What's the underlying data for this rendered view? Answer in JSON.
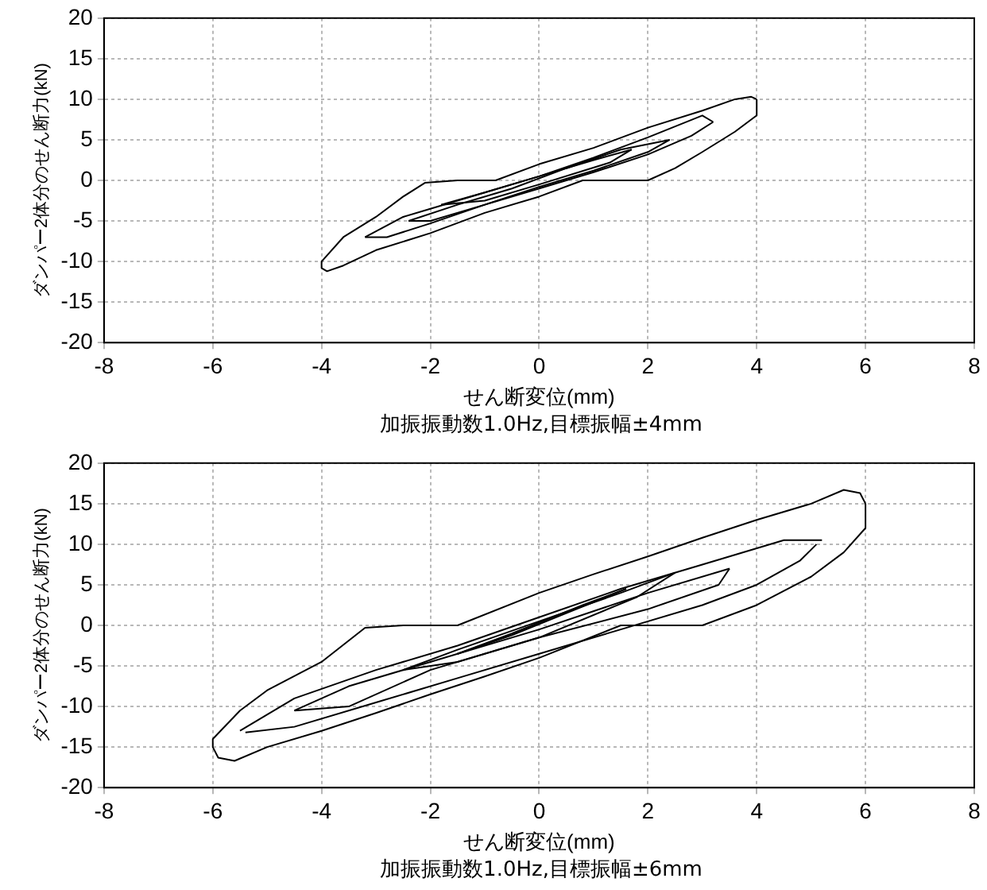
{
  "chart_data": [
    {
      "type": "line",
      "xlabel": "せん断変位(mm)",
      "ylabel": "ダンパー2体分のせん断力(kN)",
      "annotations": [
        "加振振動数1.0Hz,目標振幅±4mm"
      ],
      "xlim": [
        -8,
        8
      ],
      "xticks": [
        -8,
        -6,
        -4,
        -2,
        0,
        2,
        4,
        6,
        8
      ],
      "ylim": [
        -20,
        20
      ],
      "yticks": [
        -20,
        -15,
        -10,
        -5,
        0,
        5,
        10,
        15,
        20
      ],
      "grid": true,
      "legend": false,
      "marker": "none",
      "line_style": "solid",
      "series": [
        {
          "color": "#000000",
          "x": [
            -4,
            -3.6,
            -3,
            -2.5,
            -2.1,
            -1.5,
            -0.8,
            0,
            1,
            2,
            3,
            3.6,
            3.9,
            4
          ],
          "values": [
            -10,
            -7,
            -4.5,
            -2,
            -0.3,
            0,
            0,
            2,
            4,
            6.5,
            8.6,
            10,
            10.3,
            10
          ]
        },
        {
          "color": "#000000",
          "x": [
            -4,
            -4,
            -3.9,
            -3.6,
            -3,
            -2,
            -1,
            0,
            0.8,
            1.5,
            2,
            2.5,
            3,
            3.6,
            4,
            4
          ],
          "values": [
            -10,
            -10.8,
            -11.2,
            -10.5,
            -8.6,
            -6.5,
            -4,
            -2,
            0,
            0,
            0,
            1.5,
            3.5,
            6,
            8,
            10
          ]
        },
        {
          "color": "#000000",
          "x": [
            -3.2,
            -2.5,
            -2,
            -1,
            0,
            1,
            2,
            3,
            3.2
          ],
          "values": [
            -7,
            -4.5,
            -3.5,
            -1.5,
            0.5,
            2.8,
            5.3,
            8,
            7.2
          ]
        },
        {
          "color": "#000000",
          "x": [
            -3.2,
            -2.8,
            -2,
            -1,
            0,
            1,
            2,
            2.8,
            3.2
          ],
          "values": [
            -7,
            -7,
            -5.3,
            -3,
            -1,
            1,
            3.2,
            5.5,
            7.2
          ]
        },
        {
          "color": "#000000",
          "x": [
            -2.4,
            -1.5,
            -0.5,
            0.5,
            1.5,
            2.4
          ],
          "values": [
            -5,
            -3,
            -1,
            1.5,
            3.8,
            5
          ]
        },
        {
          "color": "#000000",
          "x": [
            -2.4,
            -2,
            -1,
            0,
            1,
            2,
            2.4
          ],
          "values": [
            -5,
            -5,
            -3,
            -0.8,
            1.2,
            3.5,
            5
          ]
        },
        {
          "color": "#000000",
          "x": [
            -1.8,
            -1,
            0,
            1,
            1.7
          ],
          "values": [
            -3,
            -1.5,
            0.5,
            2.5,
            3.8
          ]
        },
        {
          "color": "#000000",
          "x": [
            -1.8,
            -1,
            0,
            1.3,
            1.7
          ],
          "values": [
            -3,
            -2.5,
            -0.5,
            2.2,
            3.8
          ]
        }
      ]
    },
    {
      "type": "line",
      "xlabel": "せん断変位(mm)",
      "ylabel": "ダンパー2体分のせん断力(kN)",
      "annotations": [
        "加振振動数1.0Hz,目標振幅±6mm"
      ],
      "xlim": [
        -8,
        8
      ],
      "xticks": [
        -8,
        -6,
        -4,
        -2,
        0,
        2,
        4,
        6,
        8
      ],
      "ylim": [
        -20,
        20
      ],
      "yticks": [
        -20,
        -15,
        -10,
        -5,
        0,
        5,
        10,
        15,
        20
      ],
      "grid": true,
      "legend": false,
      "marker": "none",
      "line_style": "solid",
      "series": [
        {
          "color": "#000000",
          "x": [
            -6,
            -5.5,
            -5,
            -4,
            -3.2,
            -2.5,
            -1.5,
            0,
            1,
            2,
            3,
            4,
            5,
            5.6,
            5.9,
            6
          ],
          "values": [
            -14,
            -10.5,
            -8,
            -4.5,
            -0.3,
            0,
            0,
            4,
            6.3,
            8.5,
            10.8,
            13,
            15,
            16.7,
            16.3,
            15
          ]
        },
        {
          "color": "#000000",
          "x": [
            -6,
            -6,
            -5.9,
            -5.6,
            -5,
            -4,
            -3,
            -2,
            -1,
            0,
            1.5,
            2,
            3,
            4,
            5,
            5.6,
            6,
            6
          ],
          "values": [
            -14,
            -15,
            -16.3,
            -16.7,
            -15,
            -13,
            -10.8,
            -8.5,
            -6.3,
            -4,
            0,
            0,
            0,
            2.5,
            6,
            9,
            12,
            15
          ]
        },
        {
          "color": "#000000",
          "x": [
            -5.5,
            -4.5,
            -3,
            -1.5,
            0,
            1.5,
            3,
            4.5,
            5.2
          ],
          "values": [
            -13,
            -9,
            -5.5,
            -2.5,
            1,
            4.5,
            7.5,
            10.5,
            10.5
          ]
        },
        {
          "color": "#000000",
          "x": [
            -5.4,
            -4.5,
            -3,
            -1.5,
            0,
            1.5,
            3,
            4,
            4.8,
            5.1
          ],
          "values": [
            -13.2,
            -12.5,
            -9.5,
            -6.5,
            -3.5,
            -0.5,
            2.5,
            5,
            8,
            10
          ]
        },
        {
          "color": "#000000",
          "x": [
            -4.5,
            -3.5,
            -2,
            0,
            2,
            3.5
          ],
          "values": [
            -10.5,
            -7.5,
            -4.5,
            -0.5,
            4,
            7
          ]
        },
        {
          "color": "#000000",
          "x": [
            -4.5,
            -3.5,
            -2,
            0,
            2,
            3.3,
            3.5
          ],
          "values": [
            -10.5,
            -10,
            -5.5,
            -1.5,
            2,
            5,
            7
          ]
        },
        {
          "color": "#000000",
          "x": [
            -2.5,
            -1.5,
            0,
            1.5,
            2.5
          ],
          "values": [
            -5.5,
            -3,
            0.5,
            4,
            6.5
          ]
        },
        {
          "color": "#000000",
          "x": [
            -2.5,
            -1.5,
            0,
            1.8,
            2.5
          ],
          "values": [
            -5.5,
            -4.5,
            -1.5,
            3.5,
            6.5
          ]
        },
        {
          "color": "#000000",
          "x": [
            -1.5,
            -0.5,
            0.5,
            1.6
          ],
          "values": [
            -3.5,
            -1.2,
            1.5,
            4.5
          ]
        },
        {
          "color": "#000000",
          "x": [
            -1.5,
            -0.5,
            0.8,
            1.6
          ],
          "values": [
            -3.5,
            -1,
            2.5,
            4.5
          ]
        }
      ]
    }
  ]
}
